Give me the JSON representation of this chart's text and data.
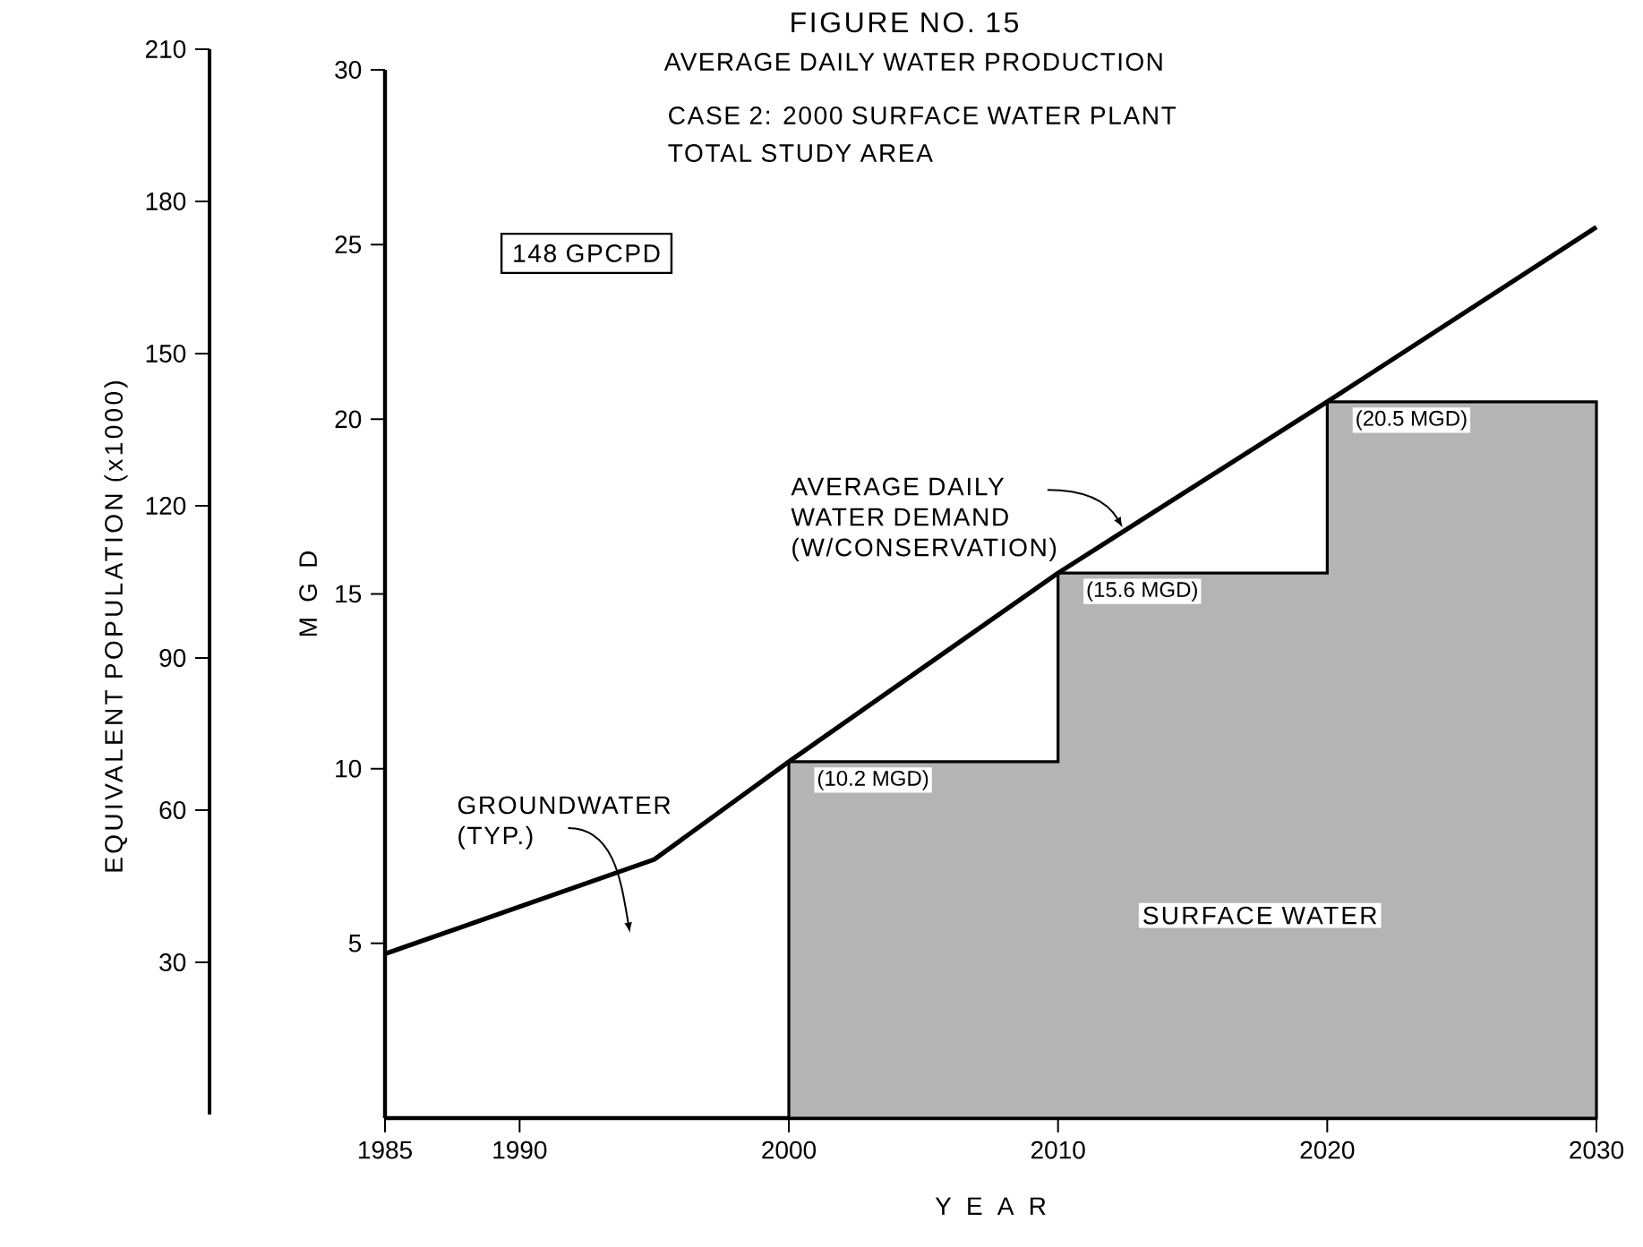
{
  "chart_data": {
    "type": "line",
    "title": "FIGURE NO. 15",
    "subtitle": "AVERAGE DAILY WATER PRODUCTION",
    "xlabel": "Y E A R",
    "ylabel": "M G D",
    "y2label": "EQUIVALENT POPULATION (x1000)",
    "annotations": [
      "CASE 2: 2000 SURFACE WATER PLANT",
      "TOTAL STUDY AREA",
      "148 GPCPD",
      {
        "text": "AVERAGE DAILY WATER DEMAND (W/CONSERVATION)",
        "x": 2012.4,
        "y": 16.9
      },
      "GROUNDWATER (TYP.)"
    ],
    "series": [
      {
        "type": "area",
        "name": "SURFACE WATER",
        "color": "#b4b4b4",
        "x": [
          2000,
          2010,
          2010,
          2020,
          2020,
          2030
        ],
        "values": [
          10.2,
          10.2,
          15.6,
          15.6,
          20.5,
          20.5
        ],
        "value_labels": [
          "(10.2 MGD)",
          null,
          "(15.6 MGD)",
          null,
          "(20.5 MGD)",
          null
        ]
      },
      {
        "color": "#000000",
        "x": [
          1985,
          1995,
          2000,
          2010,
          2020,
          2030
        ],
        "values": [
          4.7,
          7.4,
          10.2,
          15.6,
          20.5,
          25.5
        ]
      }
    ],
    "xlim": [
      1985,
      2030
    ],
    "xticks": [
      1985,
      1990,
      2000,
      2010,
      2020,
      2030
    ],
    "ylim": [
      0,
      30
    ],
    "yticks": [
      5,
      10,
      15,
      20,
      25,
      30
    ],
    "y2lim": [
      0,
      210
    ],
    "y2ticks": [
      30,
      60,
      90,
      120,
      150,
      180,
      210
    ]
  }
}
